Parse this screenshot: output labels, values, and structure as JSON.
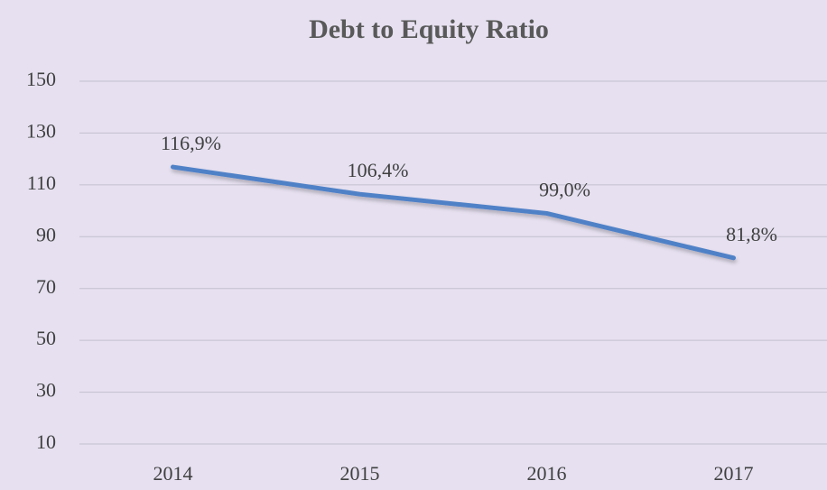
{
  "chart_data": {
    "type": "line",
    "title": "Debt to Equity Ratio",
    "categories": [
      "2014",
      "2015",
      "2016",
      "2017"
    ],
    "series": [
      {
        "name": "Debt to Equity Ratio",
        "color": "#4f81c7",
        "values": [
          116.9,
          106.4,
          99.0,
          81.8
        ],
        "value_labels": [
          "116,9%",
          "106,4%",
          "99,0%",
          "81,8%"
        ]
      }
    ],
    "ylim": [
      10,
      150
    ],
    "yticks": [
      10,
      30,
      50,
      70,
      90,
      110,
      130,
      150
    ],
    "grid": true
  }
}
